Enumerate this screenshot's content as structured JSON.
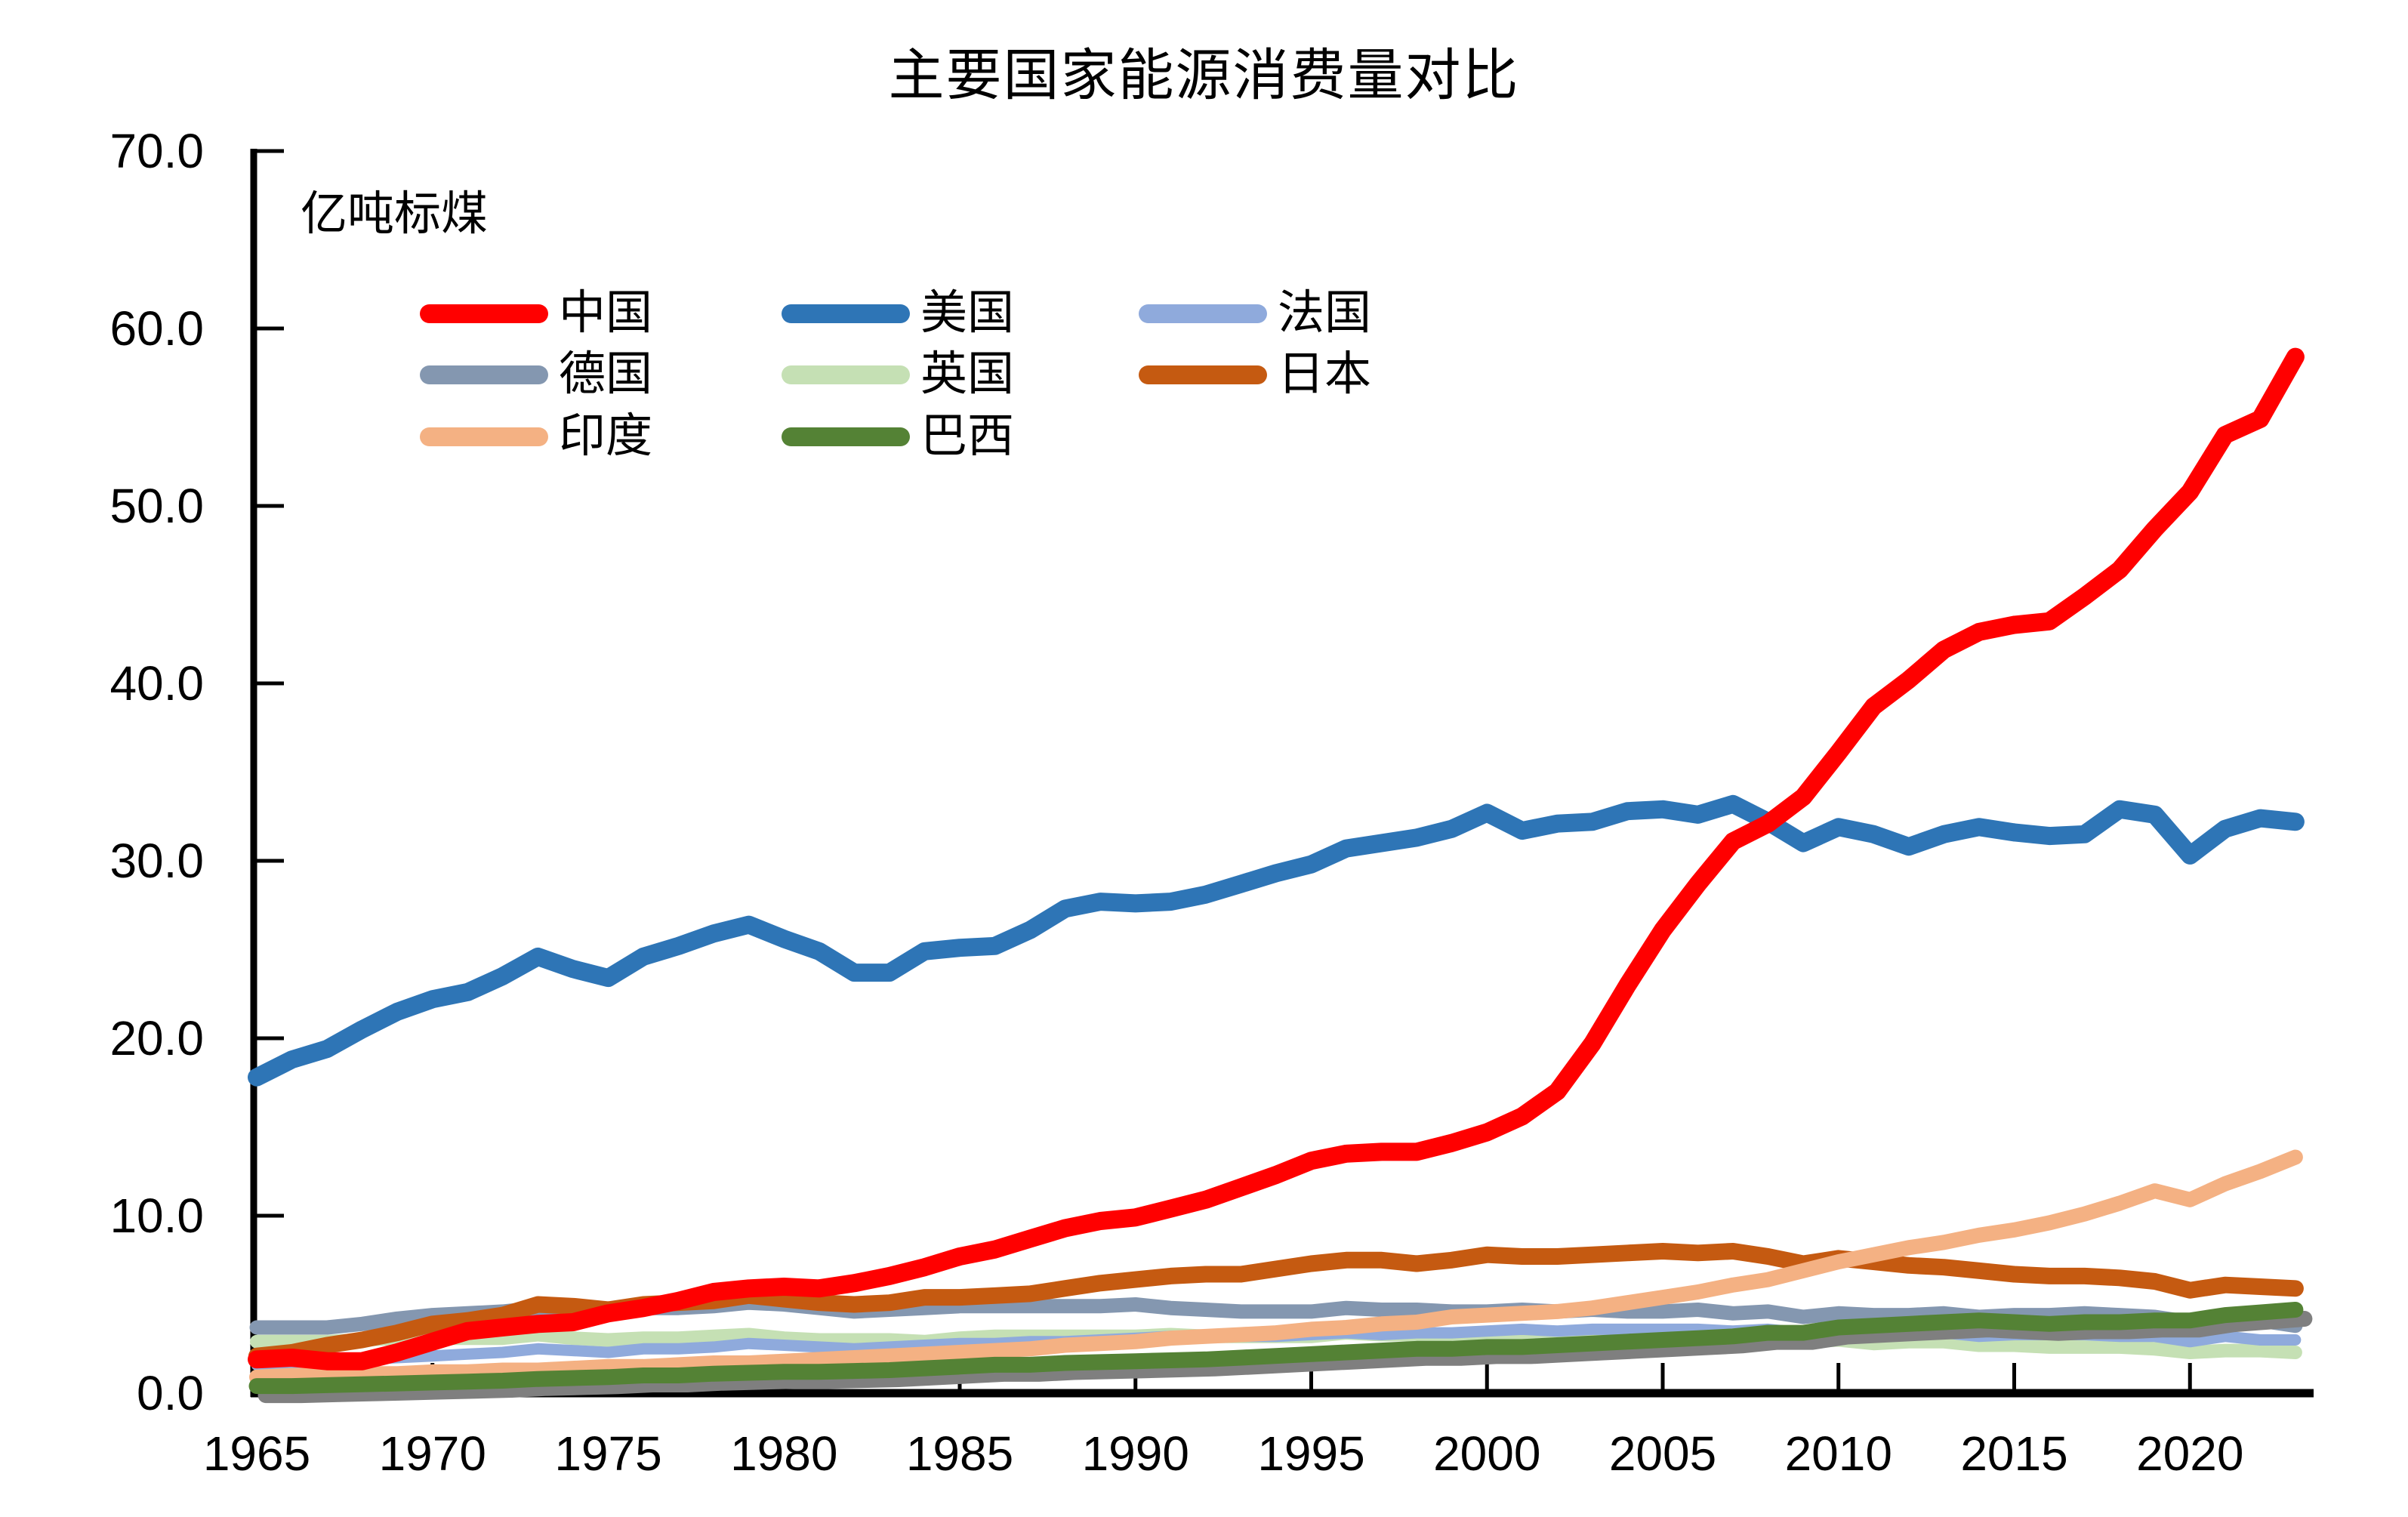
{
  "page": {
    "background": "#FFFFFF"
  },
  "chart_data": {
    "type": "line",
    "title": "主要国家能源消费量对比",
    "ylabel": "亿吨标煤",
    "xlabel": "",
    "grid": false,
    "legend_position": "inside-top-left",
    "ylim": [
      0,
      70
    ],
    "y_tick_labels": [
      "70.0",
      "60.0",
      "50.0",
      "40.0",
      "30.0",
      "20.0",
      "10.0",
      "0.0"
    ],
    "x_tick_labels": [
      "1965",
      "1970",
      "1975",
      "1980",
      "1985",
      "1990",
      "1995",
      "2000",
      "2005",
      "2010",
      "2015",
      "2020"
    ],
    "years": [
      1965,
      1966,
      1967,
      1968,
      1969,
      1970,
      1971,
      1972,
      1973,
      1974,
      1975,
      1976,
      1977,
      1978,
      1979,
      1980,
      1981,
      1982,
      1983,
      1984,
      1985,
      1986,
      1987,
      1988,
      1989,
      1990,
      1991,
      1992,
      1993,
      1994,
      1995,
      1996,
      1997,
      1998,
      1999,
      2000,
      2001,
      2002,
      2003,
      2004,
      2005,
      2006,
      2007,
      2008,
      2009,
      2010,
      2011,
      2012,
      2013,
      2014,
      2015,
      2016,
      2017,
      2018,
      2019,
      2020,
      2021,
      2022,
      2023
    ],
    "z_order": [
      "美国",
      "德国",
      "英国",
      "法国",
      "日本",
      "印度",
      "巴西",
      "中国"
    ],
    "shadow_color": "#7F7F7F",
    "series": [
      {
        "name": "中国",
        "id": "china",
        "color": "#FF0000",
        "line_width": 24,
        "shadow": false,
        "values": [
          1.9,
          2.0,
          1.8,
          1.8,
          2.3,
          2.9,
          3.5,
          3.7,
          3.9,
          4.0,
          4.5,
          4.8,
          5.2,
          5.7,
          5.9,
          6.0,
          5.9,
          6.2,
          6.6,
          7.1,
          7.7,
          8.1,
          8.7,
          9.3,
          9.7,
          9.9,
          10.4,
          10.9,
          11.6,
          12.3,
          13.1,
          13.5,
          13.6,
          13.6,
          14.1,
          14.7,
          15.6,
          17.0,
          19.7,
          23.0,
          26.1,
          28.7,
          31.1,
          32.1,
          33.6,
          36.1,
          38.7,
          40.2,
          41.9,
          42.9,
          43.3,
          43.5,
          44.9,
          46.4,
          48.7,
          50.8,
          54.0,
          54.9,
          58.4
        ]
      },
      {
        "name": "美国",
        "id": "usa",
        "color": "#2E75B6",
        "line_width": 24,
        "shadow": false,
        "values": [
          17.8,
          18.8,
          19.4,
          20.5,
          21.5,
          22.2,
          22.6,
          23.5,
          24.6,
          23.9,
          23.4,
          24.6,
          25.2,
          25.9,
          26.4,
          25.6,
          24.9,
          23.7,
          23.7,
          24.9,
          25.1,
          25.2,
          26.1,
          27.3,
          27.7,
          27.6,
          27.7,
          28.1,
          28.7,
          29.3,
          29.8,
          30.7,
          31.0,
          31.3,
          31.8,
          32.7,
          31.7,
          32.1,
          32.2,
          32.8,
          32.9,
          32.6,
          33.2,
          32.2,
          31.0,
          31.9,
          31.5,
          30.8,
          31.5,
          31.9,
          31.6,
          31.4,
          31.5,
          32.9,
          32.6,
          30.3,
          31.8,
          32.4,
          32.2
        ]
      },
      {
        "name": "法国",
        "id": "france",
        "color": "#8FAADC",
        "line_width": 15,
        "shadow": false,
        "values": [
          1.6,
          1.7,
          1.8,
          1.9,
          2.0,
          2.1,
          2.2,
          2.3,
          2.5,
          2.4,
          2.3,
          2.5,
          2.5,
          2.6,
          2.8,
          2.7,
          2.6,
          2.5,
          2.6,
          2.7,
          2.8,
          2.8,
          2.9,
          2.9,
          3.0,
          3.1,
          3.2,
          3.2,
          3.2,
          3.2,
          3.3,
          3.4,
          3.3,
          3.4,
          3.4,
          3.5,
          3.6,
          3.5,
          3.6,
          3.6,
          3.6,
          3.6,
          3.5,
          3.6,
          3.4,
          3.5,
          3.4,
          3.4,
          3.4,
          3.2,
          3.3,
          3.3,
          3.3,
          3.2,
          3.2,
          2.9,
          3.2,
          3.0,
          3.0
        ]
      },
      {
        "name": "德国",
        "id": "germany",
        "color": "#8497B0",
        "line_width": 19,
        "shadow": false,
        "values": [
          3.7,
          3.7,
          3.7,
          3.9,
          4.2,
          4.4,
          4.5,
          4.6,
          4.8,
          4.8,
          4.5,
          4.8,
          4.8,
          4.9,
          5.1,
          5.0,
          4.8,
          4.6,
          4.7,
          4.8,
          4.9,
          4.9,
          4.9,
          4.9,
          4.9,
          5.0,
          4.8,
          4.7,
          4.6,
          4.6,
          4.6,
          4.8,
          4.7,
          4.7,
          4.6,
          4.6,
          4.7,
          4.6,
          4.7,
          4.6,
          4.6,
          4.7,
          4.5,
          4.6,
          4.3,
          4.5,
          4.4,
          4.4,
          4.5,
          4.3,
          4.4,
          4.4,
          4.5,
          4.4,
          4.3,
          4.0,
          4.2,
          4.1,
          3.8
        ]
      },
      {
        "name": "英国",
        "id": "uk",
        "color": "#C5E0B4",
        "line_width": 18,
        "shadow": false,
        "values": [
          2.9,
          2.9,
          2.9,
          3.0,
          3.1,
          3.1,
          3.1,
          3.1,
          3.3,
          3.1,
          3.0,
          3.1,
          3.1,
          3.2,
          3.3,
          3.1,
          3.0,
          3.0,
          3.0,
          2.9,
          3.1,
          3.2,
          3.2,
          3.2,
          3.2,
          3.2,
          3.3,
          3.2,
          3.2,
          3.2,
          3.2,
          3.4,
          3.3,
          3.3,
          3.3,
          3.3,
          3.3,
          3.2,
          3.2,
          3.2,
          3.3,
          3.2,
          3.1,
          3.1,
          2.9,
          3.0,
          2.8,
          2.9,
          2.9,
          2.7,
          2.7,
          2.6,
          2.6,
          2.6,
          2.5,
          2.3,
          2.4,
          2.4,
          2.3
        ]
      },
      {
        "name": "日本",
        "id": "japan",
        "color": "#C55A11",
        "line_width": 22,
        "shadow": false,
        "values": [
          2.1,
          2.3,
          2.7,
          3.0,
          3.4,
          3.9,
          4.1,
          4.4,
          5.0,
          4.9,
          4.7,
          5.0,
          5.1,
          5.2,
          5.5,
          5.3,
          5.1,
          5.0,
          5.1,
          5.4,
          5.4,
          5.5,
          5.6,
          5.9,
          6.2,
          6.4,
          6.6,
          6.7,
          6.7,
          7.0,
          7.3,
          7.5,
          7.5,
          7.3,
          7.5,
          7.8,
          7.7,
          7.7,
          7.8,
          7.9,
          8.0,
          7.9,
          8.0,
          7.7,
          7.3,
          7.6,
          7.4,
          7.2,
          7.1,
          6.9,
          6.7,
          6.6,
          6.6,
          6.5,
          6.3,
          5.8,
          6.1,
          6.0,
          5.9
        ]
      },
      {
        "name": "印度",
        "id": "india",
        "color": "#F4B183",
        "line_width": 20,
        "shadow": false,
        "values": [
          0.9,
          1.0,
          1.0,
          1.1,
          1.1,
          1.2,
          1.2,
          1.3,
          1.3,
          1.4,
          1.5,
          1.5,
          1.6,
          1.7,
          1.7,
          1.8,
          1.9,
          2.0,
          2.1,
          2.2,
          2.3,
          2.4,
          2.5,
          2.7,
          2.8,
          2.9,
          3.1,
          3.2,
          3.3,
          3.4,
          3.6,
          3.7,
          3.9,
          4.0,
          4.3,
          4.4,
          4.5,
          4.6,
          4.8,
          5.1,
          5.4,
          5.7,
          6.1,
          6.4,
          6.9,
          7.4,
          7.8,
          8.2,
          8.5,
          8.9,
          9.2,
          9.6,
          10.1,
          10.7,
          11.4,
          10.9,
          11.8,
          12.5,
          13.3
        ]
      },
      {
        "name": "巴西",
        "id": "brazil",
        "color": "#548235",
        "line_width": 21,
        "shadow": true,
        "values": [
          0.4,
          0.4,
          0.45,
          0.5,
          0.55,
          0.6,
          0.65,
          0.7,
          0.8,
          0.85,
          0.9,
          1.0,
          1.0,
          1.1,
          1.15,
          1.2,
          1.2,
          1.25,
          1.3,
          1.4,
          1.5,
          1.6,
          1.6,
          1.7,
          1.75,
          1.8,
          1.85,
          1.9,
          2.0,
          2.1,
          2.2,
          2.3,
          2.4,
          2.5,
          2.5,
          2.6,
          2.6,
          2.7,
          2.8,
          2.9,
          3.0,
          3.1,
          3.2,
          3.4,
          3.4,
          3.7,
          3.8,
          3.9,
          4.0,
          4.1,
          4.0,
          3.9,
          4.0,
          4.0,
          4.1,
          4.1,
          4.4,
          4.55,
          4.7
        ]
      }
    ]
  }
}
